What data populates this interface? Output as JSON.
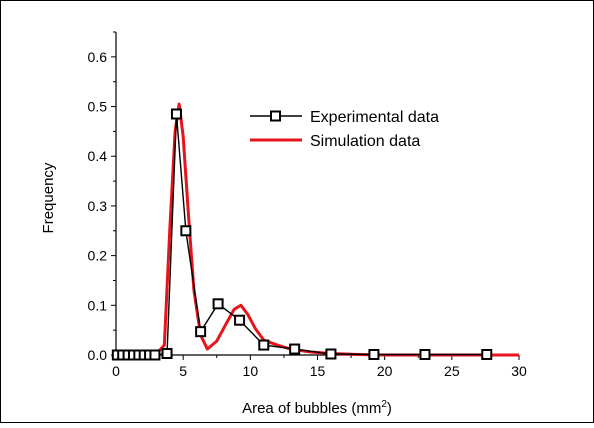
{
  "chart_data": {
    "type": "line",
    "title": "",
    "xlabel": "Area of bubbles (mm",
    "xlabel_superscript": "2",
    "xlabel_suffix": ")",
    "ylabel": "Frequency",
    "xlim": [
      0,
      30
    ],
    "ylim": [
      0,
      0.65
    ],
    "xticks": [
      0,
      5,
      10,
      15,
      20,
      25,
      30
    ],
    "xtick_labels": [
      "0",
      "5",
      "10",
      "15",
      "20",
      "25",
      "30"
    ],
    "yticks": [
      0.0,
      0.1,
      0.2,
      0.3,
      0.4,
      0.5,
      0.6
    ],
    "ytick_labels": [
      "0.0",
      "0.1",
      "0.2",
      "0.3",
      "0.4",
      "0.5",
      "0.6"
    ],
    "grid": false,
    "legend_position": "top-right",
    "series": [
      {
        "name": "Experimental data",
        "color": "#000000",
        "marker": "open-square",
        "x": [
          0.1,
          0.5,
          0.9,
          1.3,
          1.7,
          2.1,
          2.5,
          2.9,
          3.8,
          4.5,
          5.2,
          6.3,
          7.6,
          9.2,
          11.0,
          13.3,
          16.0,
          19.2,
          23.0,
          27.6
        ],
        "y": [
          0.0,
          0.0,
          0.0,
          0.0,
          0.0,
          0.0,
          0.0,
          0.0,
          0.003,
          0.485,
          0.25,
          0.047,
          0.103,
          0.07,
          0.02,
          0.012,
          0.002,
          0.001,
          0.001,
          0.001
        ]
      },
      {
        "name": "Simulation data",
        "color": "#e8141b",
        "marker": "none",
        "x": [
          0.0,
          1.0,
          2.0,
          3.0,
          3.6,
          4.0,
          4.4,
          4.7,
          5.0,
          5.4,
          5.8,
          6.3,
          6.8,
          7.5,
          8.2,
          8.8,
          9.3,
          9.8,
          10.4,
          11.0,
          12.0,
          13.0,
          14.5,
          16.0,
          18.0,
          20.0,
          23.0,
          26.0,
          30.0
        ],
        "y": [
          0.0,
          0.0,
          0.0,
          0.002,
          0.02,
          0.25,
          0.45,
          0.505,
          0.44,
          0.28,
          0.13,
          0.04,
          0.012,
          0.028,
          0.063,
          0.092,
          0.1,
          0.082,
          0.052,
          0.03,
          0.02,
          0.012,
          0.006,
          0.003,
          0.001,
          0.0,
          0.0,
          0.0,
          0.0
        ]
      }
    ]
  }
}
